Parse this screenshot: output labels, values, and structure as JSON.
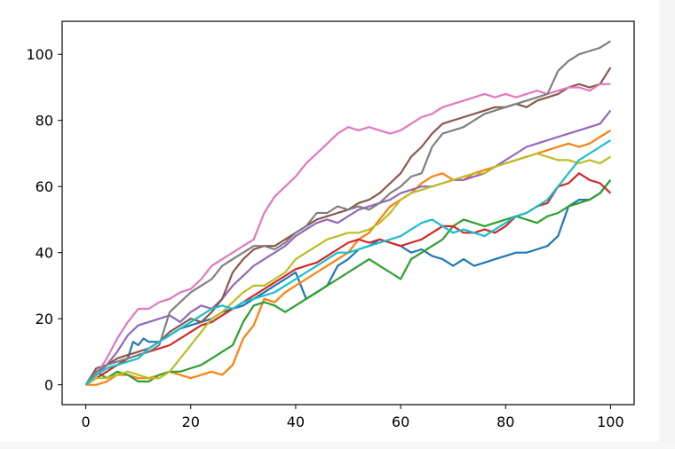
{
  "chart_data": {
    "type": "line",
    "title": "",
    "xlabel": "",
    "ylabel": "",
    "xlim": [
      -4.5,
      104.5
    ],
    "ylim": [
      -6,
      110
    ],
    "x_ticks": [
      0,
      20,
      40,
      60,
      80,
      100
    ],
    "y_ticks": [
      0,
      20,
      40,
      60,
      80,
      100
    ],
    "grid": false,
    "legend": "none",
    "series": [
      {
        "color": "#1f77b4",
        "x": [
          0,
          2,
          4,
          6,
          8,
          9,
          10,
          11,
          12,
          14,
          16,
          18,
          20,
          22,
          24,
          26,
          28,
          30,
          32,
          34,
          36,
          38,
          40,
          42,
          44,
          46,
          48,
          50,
          52,
          54,
          56,
          58,
          60,
          62,
          64,
          66,
          68,
          70,
          72,
          74,
          76,
          78,
          80,
          82,
          84,
          86,
          88,
          90,
          92,
          94,
          96,
          98,
          100
        ],
        "y": [
          0,
          3,
          5,
          6,
          8,
          13,
          12,
          14,
          13,
          13,
          15,
          17,
          18,
          19,
          20,
          22,
          23,
          24,
          26,
          28,
          30,
          32,
          34,
          26,
          28,
          30,
          36,
          38,
          41,
          42,
          44,
          43,
          42,
          40,
          41,
          39,
          38,
          36,
          38,
          36,
          37,
          38,
          39,
          40,
          40,
          41,
          42,
          45,
          54,
          56,
          56,
          58,
          62
        ]
      },
      {
        "color": "#ff7f0e",
        "x": [
          0,
          2,
          4,
          6,
          8,
          10,
          12,
          14,
          16,
          18,
          20,
          22,
          24,
          26,
          28,
          30,
          32,
          34,
          36,
          38,
          40,
          42,
          44,
          46,
          48,
          50,
          52,
          54,
          56,
          58,
          60,
          62,
          64,
          66,
          68,
          70,
          72,
          74,
          76,
          78,
          80,
          82,
          84,
          86,
          88,
          90,
          92,
          94,
          96,
          98,
          100
        ],
        "y": [
          0,
          0,
          1,
          3,
          3,
          2,
          2,
          3,
          4,
          3,
          2,
          3,
          4,
          3,
          6,
          14,
          18,
          26,
          25,
          28,
          30,
          32,
          34,
          36,
          38,
          40,
          44,
          46,
          50,
          54,
          56,
          58,
          61,
          63,
          64,
          62,
          62,
          64,
          65,
          66,
          67,
          68,
          69,
          70,
          71,
          72,
          73,
          72,
          73,
          75,
          77
        ]
      },
      {
        "color": "#2ca02c",
        "x": [
          0,
          2,
          4,
          6,
          8,
          10,
          12,
          14,
          16,
          18,
          20,
          22,
          24,
          26,
          28,
          30,
          32,
          34,
          36,
          38,
          40,
          42,
          44,
          46,
          48,
          50,
          52,
          54,
          56,
          58,
          60,
          62,
          64,
          66,
          68,
          70,
          72,
          74,
          76,
          78,
          80,
          82,
          84,
          86,
          88,
          90,
          92,
          94,
          96,
          98,
          100
        ],
        "y": [
          0,
          4,
          2,
          4,
          3,
          1,
          1,
          3,
          4,
          4,
          5,
          6,
          8,
          10,
          12,
          19,
          24,
          25,
          24,
          22,
          24,
          26,
          28,
          30,
          32,
          34,
          36,
          38,
          36,
          34,
          32,
          38,
          40,
          42,
          44,
          48,
          50,
          49,
          48,
          49,
          50,
          51,
          50,
          49,
          51,
          52,
          54,
          55,
          56,
          58,
          62
        ]
      },
      {
        "color": "#d62728",
        "x": [
          0,
          2,
          4,
          6,
          8,
          10,
          12,
          14,
          16,
          18,
          20,
          22,
          24,
          26,
          28,
          30,
          32,
          34,
          36,
          38,
          40,
          42,
          44,
          46,
          48,
          50,
          52,
          54,
          56,
          58,
          60,
          62,
          64,
          66,
          68,
          70,
          72,
          74,
          76,
          78,
          80,
          82,
          84,
          86,
          88,
          90,
          92,
          94,
          96,
          98,
          100
        ],
        "y": [
          0,
          2,
          4,
          6,
          8,
          9,
          10,
          11,
          12,
          14,
          16,
          18,
          19,
          21,
          23,
          25,
          27,
          29,
          31,
          33,
          35,
          36,
          37,
          39,
          41,
          43,
          44,
          43,
          44,
          43,
          42,
          43,
          44,
          46,
          48,
          48,
          46,
          46,
          47,
          46,
          48,
          51,
          52,
          54,
          55,
          60,
          61,
          64,
          62,
          61,
          58
        ]
      },
      {
        "color": "#9467bd",
        "x": [
          0,
          2,
          4,
          6,
          8,
          10,
          12,
          14,
          16,
          18,
          20,
          22,
          24,
          26,
          28,
          30,
          32,
          34,
          36,
          38,
          40,
          42,
          44,
          46,
          48,
          50,
          52,
          54,
          56,
          58,
          60,
          62,
          64,
          66,
          68,
          70,
          72,
          74,
          76,
          78,
          80,
          82,
          84,
          86,
          88,
          90,
          92,
          94,
          96,
          98,
          100
        ],
        "y": [
          0,
          3,
          6,
          10,
          15,
          18,
          19,
          20,
          21,
          19,
          22,
          24,
          23,
          26,
          30,
          33,
          36,
          38,
          40,
          42,
          45,
          47,
          49,
          50,
          49,
          51,
          53,
          54,
          55,
          56,
          58,
          59,
          60,
          60,
          61,
          62,
          62,
          63,
          64,
          66,
          68,
          70,
          72,
          73,
          74,
          75,
          76,
          77,
          78,
          79,
          83
        ]
      },
      {
        "color": "#8c564b",
        "x": [
          0,
          2,
          4,
          6,
          8,
          10,
          12,
          14,
          16,
          18,
          20,
          22,
          24,
          26,
          28,
          30,
          32,
          34,
          36,
          38,
          40,
          42,
          44,
          46,
          48,
          50,
          52,
          54,
          56,
          58,
          60,
          62,
          64,
          66,
          68,
          70,
          72,
          74,
          76,
          78,
          80,
          82,
          84,
          86,
          88,
          90,
          92,
          94,
          96,
          98,
          100
        ],
        "y": [
          0,
          5,
          6,
          8,
          9,
          10,
          11,
          13,
          16,
          18,
          20,
          19,
          22,
          26,
          34,
          38,
          41,
          42,
          42,
          44,
          46,
          48,
          50,
          51,
          52,
          53,
          55,
          56,
          58,
          61,
          64,
          69,
          72,
          76,
          79,
          80,
          81,
          82,
          83,
          84,
          84,
          85,
          84,
          86,
          87,
          88,
          90,
          91,
          90,
          91,
          96
        ]
      },
      {
        "color": "#e377c2",
        "x": [
          0,
          2,
          4,
          6,
          8,
          10,
          12,
          14,
          16,
          18,
          20,
          22,
          24,
          26,
          28,
          30,
          32,
          34,
          36,
          38,
          40,
          42,
          44,
          46,
          48,
          50,
          52,
          54,
          56,
          58,
          60,
          62,
          64,
          66,
          68,
          70,
          72,
          74,
          76,
          78,
          80,
          82,
          84,
          86,
          88,
          90,
          92,
          94,
          96,
          98,
          100
        ],
        "y": [
          0,
          3,
          8,
          14,
          19,
          23,
          23,
          25,
          26,
          28,
          29,
          32,
          36,
          38,
          40,
          42,
          44,
          52,
          57,
          60,
          63,
          67,
          70,
          73,
          76,
          78,
          77,
          78,
          77,
          76,
          77,
          79,
          81,
          82,
          84,
          85,
          86,
          87,
          88,
          87,
          88,
          87,
          88,
          89,
          88,
          89,
          90,
          90,
          89,
          91,
          91
        ]
      },
      {
        "color": "#7f7f7f",
        "x": [
          0,
          2,
          4,
          6,
          8,
          10,
          12,
          14,
          16,
          18,
          20,
          22,
          24,
          26,
          28,
          30,
          32,
          34,
          36,
          38,
          40,
          42,
          44,
          46,
          48,
          50,
          52,
          54,
          56,
          58,
          60,
          62,
          64,
          66,
          68,
          70,
          72,
          74,
          76,
          78,
          80,
          82,
          84,
          86,
          88,
          90,
          92,
          94,
          96,
          98,
          100
        ],
        "y": [
          0,
          4,
          6,
          7,
          8,
          9,
          10,
          12,
          22,
          25,
          28,
          30,
          32,
          36,
          38,
          40,
          42,
          42,
          41,
          43,
          46,
          48,
          52,
          52,
          54,
          53,
          54,
          53,
          55,
          58,
          60,
          63,
          64,
          72,
          76,
          77,
          78,
          80,
          82,
          83,
          84,
          85,
          86,
          87,
          88,
          95,
          98,
          100,
          101,
          102,
          104
        ]
      },
      {
        "color": "#bcbd22",
        "x": [
          0,
          2,
          4,
          6,
          8,
          10,
          12,
          14,
          16,
          18,
          20,
          22,
          24,
          26,
          28,
          30,
          32,
          34,
          36,
          38,
          40,
          42,
          44,
          46,
          48,
          50,
          52,
          54,
          56,
          58,
          60,
          62,
          64,
          66,
          68,
          70,
          72,
          74,
          76,
          78,
          80,
          82,
          84,
          86,
          88,
          90,
          92,
          94,
          96,
          98,
          100
        ],
        "y": [
          0,
          2,
          2,
          3,
          4,
          3,
          2,
          2,
          4,
          8,
          12,
          16,
          20,
          22,
          25,
          28,
          30,
          30,
          32,
          34,
          38,
          40,
          42,
          44,
          45,
          46,
          46,
          47,
          49,
          52,
          56,
          58,
          59,
          60,
          61,
          62,
          63,
          64,
          64,
          66,
          67,
          68,
          69,
          70,
          69,
          68,
          68,
          67,
          68,
          67,
          69
        ]
      },
      {
        "color": "#17becf",
        "x": [
          0,
          2,
          4,
          6,
          8,
          10,
          12,
          14,
          16,
          18,
          20,
          22,
          24,
          26,
          28,
          30,
          32,
          34,
          36,
          38,
          40,
          42,
          44,
          46,
          48,
          50,
          52,
          54,
          56,
          58,
          60,
          62,
          64,
          66,
          68,
          70,
          72,
          74,
          76,
          78,
          80,
          82,
          84,
          86,
          88,
          90,
          92,
          94,
          96,
          98,
          100
        ],
        "y": [
          0,
          3,
          5,
          6,
          7,
          8,
          11,
          13,
          15,
          17,
          19,
          21,
          23,
          24,
          23,
          25,
          26,
          27,
          28,
          30,
          32,
          34,
          36,
          38,
          40,
          40,
          41,
          42,
          43,
          44,
          45,
          47,
          49,
          50,
          48,
          46,
          47,
          46,
          45,
          47,
          49,
          51,
          52,
          54,
          56,
          60,
          64,
          68,
          70,
          72,
          74
        ]
      }
    ]
  }
}
